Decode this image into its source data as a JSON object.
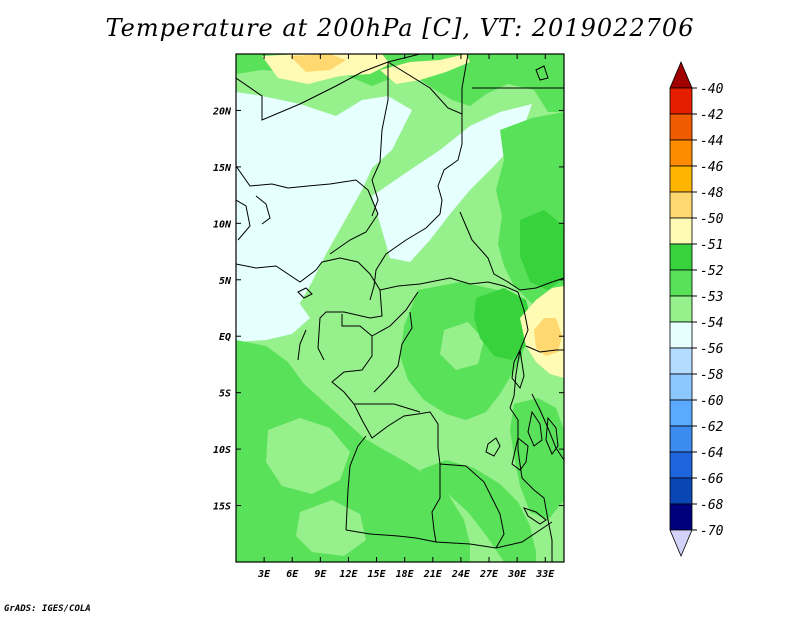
{
  "title": "Temperature at 200hPa [C], VT: 2019022706",
  "credit": "GrADS: IGES/COLA",
  "map": {
    "lon_range": [
      0,
      35
    ],
    "lat_range": [
      -20,
      25
    ],
    "x_tick_labels": [
      "3E",
      "6E",
      "9E",
      "12E",
      "15E",
      "18E",
      "21E",
      "24E",
      "27E",
      "30E",
      "33E"
    ],
    "y_tick_labels": [
      "20N",
      "15N",
      "10N",
      "5N",
      "EQ",
      "5S",
      "10S",
      "15S"
    ]
  },
  "colorbar": {
    "levels": [
      "-40",
      "-42",
      "-44",
      "-46",
      "-48",
      "-50",
      "-51",
      "-52",
      "-53",
      "-54",
      "-56",
      "-58",
      "-60",
      "-62",
      "-64",
      "-66",
      "-68",
      "-70"
    ],
    "colors": [
      "#a00000",
      "#e61e00",
      "#f05a00",
      "#ff8c00",
      "#ffb400",
      "#ffd870",
      "#fffab4",
      "#37d23c",
      "#5ae15a",
      "#96f08c",
      "#e6ffff",
      "#b4dcff",
      "#8cc8ff",
      "#5aaaff",
      "#3c8cf0",
      "#1e64dc",
      "#0a46b4",
      "#00007d",
      "#d2d2fa"
    ]
  },
  "region_colors": {
    "c53": "#96f08c",
    "c52": "#5ae15a",
    "c51": "#37d23c",
    "c54": "#e6ffff",
    "c50": "#fffab4",
    "c48": "#ffd870"
  }
}
